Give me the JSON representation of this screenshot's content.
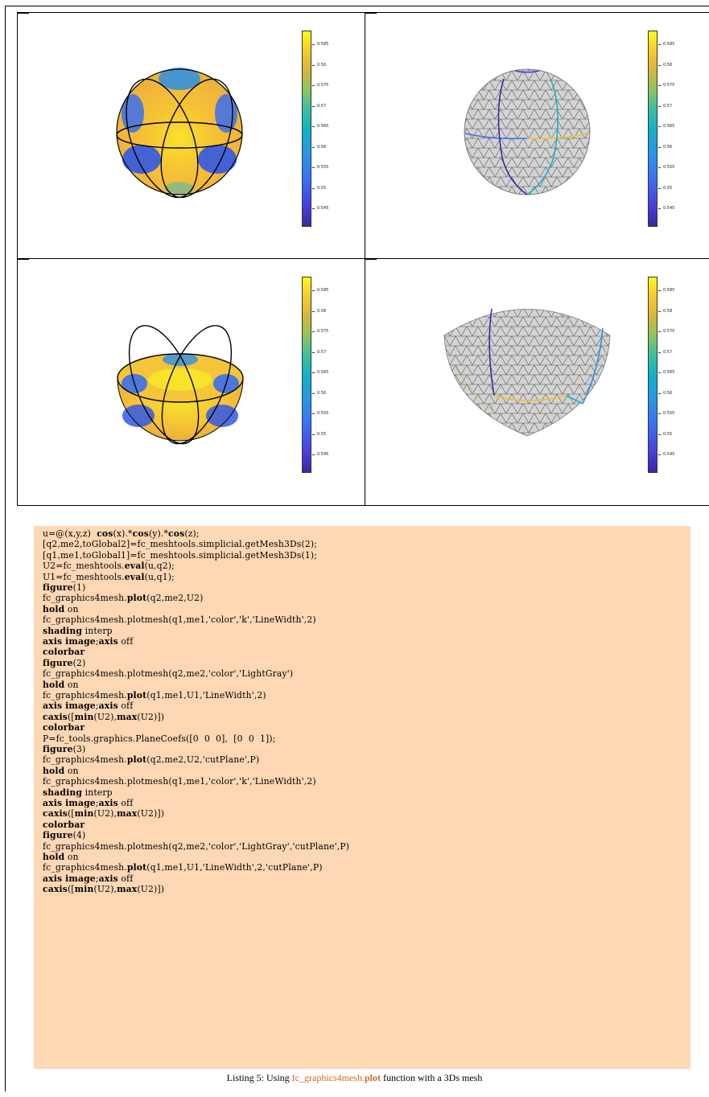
{
  "colors": {
    "code_background": "#fed7b4",
    "caption_function": "#d2691e",
    "mesh_gray": "#d3d3d3",
    "parula_low": "#3e26a8",
    "parula_high": "#f9fb15"
  },
  "colorbar_ticks": [
    "0.585",
    "0.58",
    "0.575",
    "0.57",
    "0.565",
    "0.56",
    "0.555",
    "0.55",
    "0.545"
  ],
  "figures": [
    {
      "id": 1,
      "content": "sphere-colored-with-black-mesh-lines"
    },
    {
      "id": 2,
      "content": "sphere-lightgray-mesh-with-colored-lines"
    },
    {
      "id": 3,
      "content": "cut-sphere-colored-with-black-lines"
    },
    {
      "id": 4,
      "content": "cut-sphere-lightgray-mesh-with-colored-lines"
    }
  ],
  "code_lines": [
    [
      {
        "t": "u=@(x,y,z)  "
      },
      {
        "t": "cos",
        "b": true
      },
      {
        "t": "(x).*"
      },
      {
        "t": "cos",
        "b": true
      },
      {
        "t": "(y).*"
      },
      {
        "t": "cos",
        "b": true
      },
      {
        "t": "(z);"
      }
    ],
    [
      {
        "t": "[q2,me2,toGlobal2]=fc_meshtools.simplicial.getMesh3Ds(2);"
      }
    ],
    [
      {
        "t": "[q1,me1,toGlobal1]=fc_meshtools.simplicial.getMesh3Ds(1);"
      }
    ],
    [
      {
        "t": "U2=fc_meshtools."
      },
      {
        "t": "eval",
        "b": true
      },
      {
        "t": "(u,q2);"
      }
    ],
    [
      {
        "t": "U1=fc_meshtools."
      },
      {
        "t": "eval",
        "b": true
      },
      {
        "t": "(u,q1);"
      }
    ],
    [
      {
        "t": "figure",
        "b": true
      },
      {
        "t": "(1)"
      }
    ],
    [
      {
        "t": "fc_graphics4mesh."
      },
      {
        "t": "plot",
        "b": true
      },
      {
        "t": "(q2,me2,U2)"
      }
    ],
    [
      {
        "t": "hold",
        "b": true
      },
      {
        "t": " on"
      }
    ],
    [
      {
        "t": "fc_graphics4mesh.plotmesh(q1,me1,'color','k','LineWidth',2)"
      }
    ],
    [
      {
        "t": "shading",
        "b": true
      },
      {
        "t": " interp"
      }
    ],
    [
      {
        "t": "axis image",
        "b": true
      },
      {
        "t": ";"
      },
      {
        "t": "axis",
        "b": true
      },
      {
        "t": " off"
      }
    ],
    [
      {
        "t": "colorbar",
        "b": true
      }
    ],
    [
      {
        "t": "figure",
        "b": true
      },
      {
        "t": "(2)"
      }
    ],
    [
      {
        "t": "fc_graphics4mesh.plotmesh(q2,me2,'color','LightGray')"
      }
    ],
    [
      {
        "t": "hold",
        "b": true
      },
      {
        "t": " on"
      }
    ],
    [
      {
        "t": "fc_graphics4mesh."
      },
      {
        "t": "plot",
        "b": true
      },
      {
        "t": "(q1,me1,U1,'LineWidth',2)"
      }
    ],
    [
      {
        "t": "axis image",
        "b": true
      },
      {
        "t": ";"
      },
      {
        "t": "axis",
        "b": true
      },
      {
        "t": " off"
      }
    ],
    [
      {
        "t": "caxis",
        "b": true
      },
      {
        "t": "(["
      },
      {
        "t": "min",
        "b": true
      },
      {
        "t": "(U2),"
      },
      {
        "t": "max",
        "b": true
      },
      {
        "t": "(U2)])"
      }
    ],
    [
      {
        "t": "colorbar",
        "b": true
      }
    ],
    [
      {
        "t": "P=fc_tools.graphics.PlaneCoefs([0  0  0],  [0  0  1]);"
      }
    ],
    [
      {
        "t": "figure",
        "b": true
      },
      {
        "t": "(3)"
      }
    ],
    [
      {
        "t": "fc_graphics4mesh."
      },
      {
        "t": "plot",
        "b": true
      },
      {
        "t": "(q2,me2,U2,'cutPlane',P)"
      }
    ],
    [
      {
        "t": "hold",
        "b": true
      },
      {
        "t": " on"
      }
    ],
    [
      {
        "t": "fc_graphics4mesh.plotmesh(q1,me1,'color','k','LineWidth',2)"
      }
    ],
    [
      {
        "t": "shading",
        "b": true
      },
      {
        "t": " interp"
      }
    ],
    [
      {
        "t": "axis image",
        "b": true
      },
      {
        "t": ";"
      },
      {
        "t": "axis",
        "b": true
      },
      {
        "t": " off"
      }
    ],
    [
      {
        "t": "caxis",
        "b": true
      },
      {
        "t": "(["
      },
      {
        "t": "min",
        "b": true
      },
      {
        "t": "(U2),"
      },
      {
        "t": "max",
        "b": true
      },
      {
        "t": "(U2)])"
      }
    ],
    [
      {
        "t": "colorbar",
        "b": true
      }
    ],
    [
      {
        "t": "figure",
        "b": true
      },
      {
        "t": "(4)"
      }
    ],
    [
      {
        "t": "fc_graphics4mesh.plotmesh(q2,me2,'color','LightGray','cutPlane',P)"
      }
    ],
    [
      {
        "t": "hold",
        "b": true
      },
      {
        "t": " on"
      }
    ],
    [
      {
        "t": "fc_graphics4mesh."
      },
      {
        "t": "plot",
        "b": true
      },
      {
        "t": "(q1,me1,U1,'LineWidth',2,'cutPlane',P)"
      }
    ],
    [
      {
        "t": "axis image",
        "b": true
      },
      {
        "t": ";"
      },
      {
        "t": "axis",
        "b": true
      },
      {
        "t": " off"
      }
    ],
    [
      {
        "t": "caxis",
        "b": true
      },
      {
        "t": "(["
      },
      {
        "t": "min",
        "b": true
      },
      {
        "t": "(U2),"
      },
      {
        "t": "max",
        "b": true
      },
      {
        "t": "(U2)])"
      }
    ]
  ],
  "caption": {
    "prefix": "Listing 5: Using ",
    "function_plain": "fc_graphics4mesh.",
    "function_bold": "plot",
    "suffix": " function with a 3Ds mesh"
  }
}
